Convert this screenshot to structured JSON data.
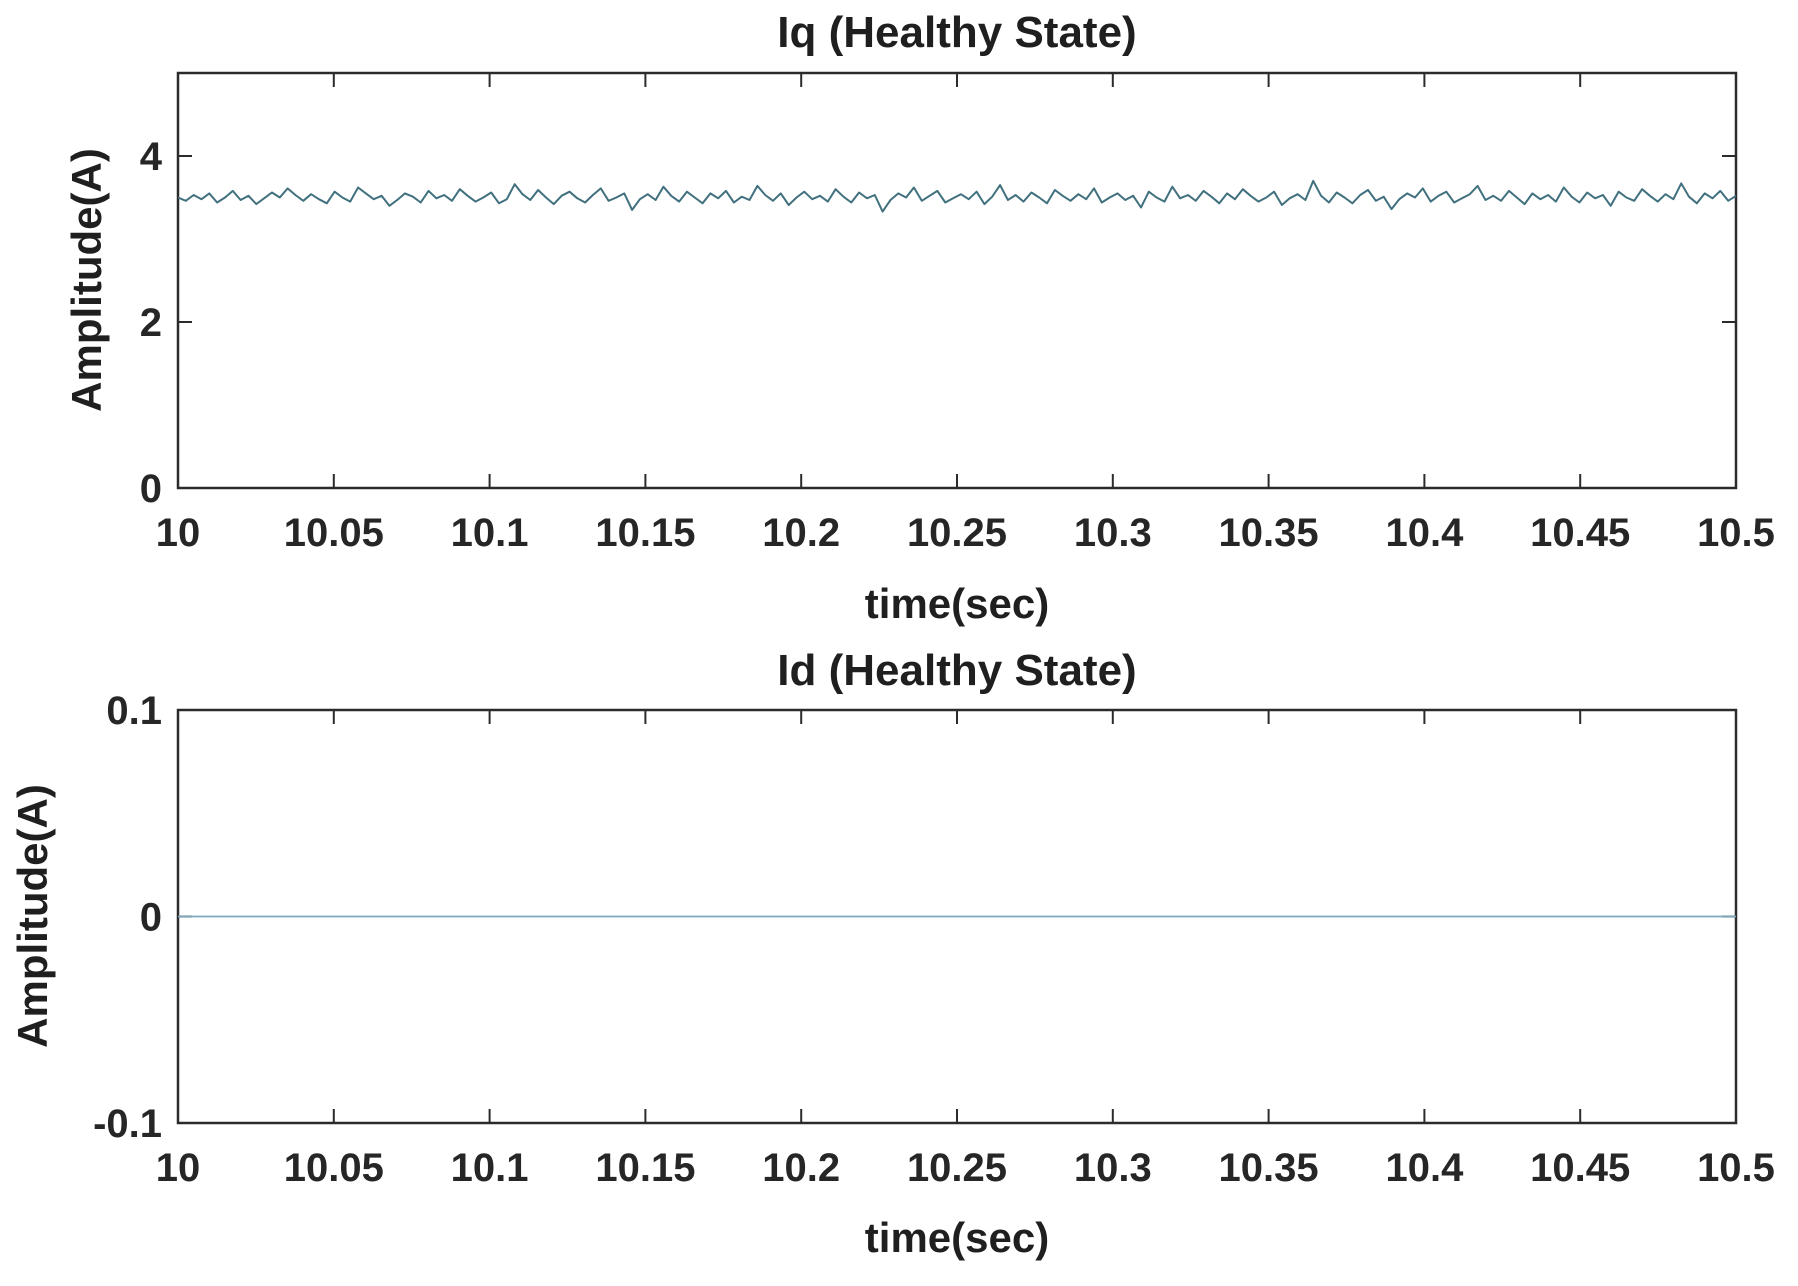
{
  "figure": {
    "background": "#ffffff",
    "axis_color": "#2b2b2b",
    "tick_label_color": "#262626"
  },
  "chart_data": [
    {
      "type": "line",
      "title": "Iq (Healthy State)",
      "xlabel": "time(sec)",
      "ylabel": "Amplitude(A)",
      "xlim": [
        10,
        10.5
      ],
      "ylim": [
        0,
        5
      ],
      "xticks": [
        10,
        10.05,
        10.1,
        10.15,
        10.2,
        10.25,
        10.3,
        10.35,
        10.4,
        10.45,
        10.5
      ],
      "xtick_labels": [
        "10",
        "10.05",
        "10.1",
        "10.15",
        "10.2",
        "10.25",
        "10.3",
        "10.35",
        "10.4",
        "10.45",
        "10.5"
      ],
      "yticks": [
        0,
        2,
        4
      ],
      "ytick_labels": [
        "0",
        "2",
        "4"
      ],
      "grid": false,
      "legend": null,
      "line_color": "#41707e",
      "line_width": 2,
      "series": [
        {
          "name": "Iq",
          "mean": 3.5,
          "noise_range": [
            3.3,
            3.75
          ],
          "values": [
            3.5,
            3.46,
            3.53,
            3.48,
            3.55,
            3.44,
            3.5,
            3.58,
            3.47,
            3.52,
            3.42,
            3.49,
            3.56,
            3.5,
            3.61,
            3.53,
            3.46,
            3.54,
            3.48,
            3.43,
            3.57,
            3.5,
            3.45,
            3.62,
            3.55,
            3.48,
            3.52,
            3.4,
            3.47,
            3.55,
            3.51,
            3.44,
            3.58,
            3.49,
            3.53,
            3.46,
            3.6,
            3.52,
            3.45,
            3.5,
            3.56,
            3.43,
            3.48,
            3.66,
            3.54,
            3.47,
            3.59,
            3.5,
            3.42,
            3.52,
            3.57,
            3.49,
            3.44,
            3.53,
            3.61,
            3.46,
            3.5,
            3.55,
            3.35,
            3.48,
            3.54,
            3.47,
            3.63,
            3.52,
            3.45,
            3.57,
            3.5,
            3.43,
            3.55,
            3.49,
            3.58,
            3.44,
            3.51,
            3.47,
            3.64,
            3.53,
            3.46,
            3.55,
            3.41,
            3.5,
            3.57,
            3.48,
            3.52,
            3.45,
            3.6,
            3.51,
            3.44,
            3.56,
            3.49,
            3.53,
            3.33,
            3.47,
            3.55,
            3.5,
            3.62,
            3.46,
            3.52,
            3.58,
            3.44,
            3.49,
            3.54,
            3.48,
            3.57,
            3.42,
            3.51,
            3.65,
            3.47,
            3.53,
            3.45,
            3.56,
            3.5,
            3.43,
            3.59,
            3.52,
            3.46,
            3.54,
            3.48,
            3.61,
            3.44,
            3.5,
            3.55,
            3.47,
            3.52,
            3.38,
            3.57,
            3.5,
            3.45,
            3.63,
            3.49,
            3.53,
            3.46,
            3.58,
            3.51,
            3.43,
            3.55,
            3.48,
            3.6,
            3.52,
            3.45,
            3.5,
            3.57,
            3.41,
            3.49,
            3.54,
            3.47,
            3.7,
            3.52,
            3.44,
            3.56,
            3.5,
            3.43,
            3.53,
            3.59,
            3.46,
            3.51,
            3.36,
            3.48,
            3.55,
            3.5,
            3.61,
            3.45,
            3.52,
            3.57,
            3.44,
            3.49,
            3.54,
            3.64,
            3.47,
            3.52,
            3.46,
            3.58,
            3.5,
            3.42,
            3.55,
            3.48,
            3.53,
            3.45,
            3.62,
            3.51,
            3.44,
            3.56,
            3.49,
            3.53,
            3.4,
            3.57,
            3.5,
            3.46,
            3.6,
            3.52,
            3.45,
            3.54,
            3.48,
            3.67,
            3.51,
            3.43,
            3.55,
            3.49,
            3.58,
            3.46,
            3.52
          ]
        }
      ]
    },
    {
      "type": "line",
      "title": "Id (Healthy State)",
      "xlabel": "time(sec)",
      "ylabel": "Amplitude(A)",
      "xlim": [
        10,
        10.5
      ],
      "ylim": [
        -0.1,
        0.1
      ],
      "xticks": [
        10,
        10.05,
        10.1,
        10.15,
        10.2,
        10.25,
        10.3,
        10.35,
        10.4,
        10.45,
        10.5
      ],
      "xtick_labels": [
        "10",
        "10.05",
        "10.1",
        "10.15",
        "10.2",
        "10.25",
        "10.3",
        "10.35",
        "10.4",
        "10.45",
        "10.5"
      ],
      "yticks": [
        -0.1,
        0,
        0.1
      ],
      "ytick_labels": [
        "-0.1",
        "0",
        "0.1"
      ],
      "grid": false,
      "legend": null,
      "line_color": "#7ea8bd",
      "line_width": 1.8,
      "series": [
        {
          "name": "Id",
          "mean": 0,
          "values": [
            0,
            0
          ]
        }
      ]
    }
  ]
}
